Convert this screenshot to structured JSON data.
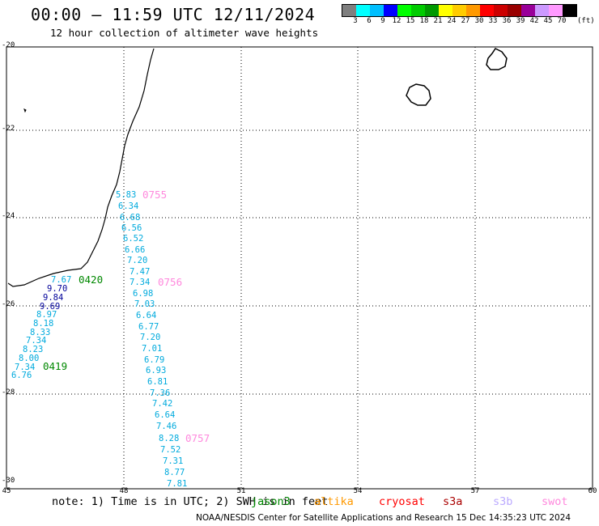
{
  "title": "00:00 — 11:59 UTC 12/11/2024",
  "subtitle": "12 hour collection of altimeter wave heights",
  "scale": {
    "colors": [
      "#7f7f7f",
      "#00ffff",
      "#00bfff",
      "#0000ff",
      "#00ff00",
      "#00cc00",
      "#009900",
      "#ffff00",
      "#ffcc00",
      "#ff9900",
      "#ff0000",
      "#cc0000",
      "#990000",
      "#990099",
      "#cc99ff",
      "#ff99ff",
      "#000000"
    ],
    "labels": [
      "3",
      "6",
      "9",
      "12",
      "15",
      "18",
      "21",
      "24",
      "27",
      "30",
      "33",
      "36",
      "39",
      "42",
      "45",
      "70"
    ],
    "unit": "(ft)"
  },
  "map": {
    "lat_labels": [
      "-20",
      "-22",
      "-24",
      "-26",
      "-28",
      "-30"
    ],
    "lon_labels": [
      "45",
      "48",
      "51",
      "54",
      "57",
      "60"
    ]
  },
  "tracks": [
    {
      "time": "0755",
      "time_color": "#ff88dd",
      "color": "#00aadd",
      "values": [
        "5.83",
        "6.34",
        "6.68",
        "6.56",
        "6.52",
        "6.66",
        "7.20",
        "7.47",
        "7.34",
        "6.98",
        "7.03",
        "6.64",
        "6.77",
        "7.20",
        "7.01",
        "6.79",
        "6.93",
        "6.81",
        "7.36",
        "7.42",
        "6.64",
        "7.46",
        "8.28",
        "7.52",
        "7.31",
        "8.77",
        "7.81"
      ],
      "value_colors": {
        "8": "#00aadd"
      }
    },
    {
      "time": "0756",
      "time_color": "#ff88dd"
    },
    {
      "time": "0757",
      "time_color": "#ff88dd"
    },
    {
      "time": "0420",
      "time_color": "#008800",
      "values": [
        "7.67",
        "9.70",
        "9.84",
        "9.69",
        "8.97",
        "8.18",
        "8.33",
        "7.34",
        "8.23",
        "8.00",
        "7.34",
        "6.76"
      ],
      "value_colors": [
        "#00aadd",
        "#000099",
        "#000099",
        "#000099",
        "#00aadd",
        "#00aadd",
        "#00aadd",
        "#00aadd",
        "#00aadd",
        "#00aadd",
        "#00aadd",
        "#00aadd"
      ]
    },
    {
      "time": "0419",
      "time_color": "#008800"
    }
  ],
  "footer": {
    "note": "note: 1) Time is in UTC; 2) SWH is in feet",
    "satellites": [
      {
        "name": "jason3",
        "color": "#008800"
      },
      {
        "name": "altika",
        "color": "#ff9900"
      },
      {
        "name": "cryosat",
        "color": "#ff0000"
      },
      {
        "name": "s3a",
        "color": "#aa0000"
      },
      {
        "name": "s3b",
        "color": "#bbaaff"
      },
      {
        "name": "swot",
        "color": "#ff88dd"
      }
    ],
    "credit_org": "NOAA/NESDIS Center for Satellite Applications and Research",
    "credit_time": "15 Dec 14:35:23 UTC 2024"
  }
}
